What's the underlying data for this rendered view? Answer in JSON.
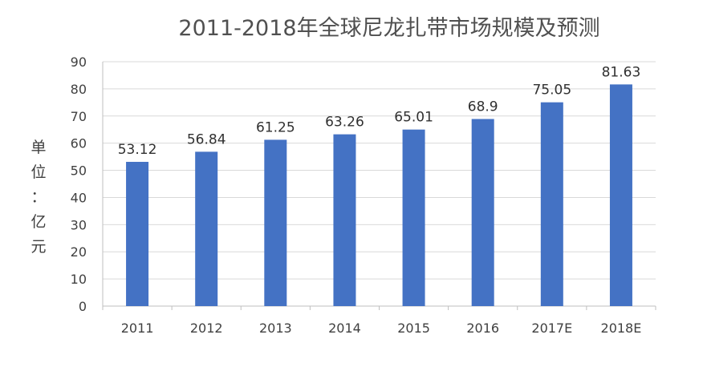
{
  "chart_data": {
    "type": "bar",
    "title": "2011-2018年全球尼龙扎带市场规模及预测",
    "ylabel": "单位：亿元",
    "xlabel": "",
    "categories": [
      "2011",
      "2012",
      "2013",
      "2014",
      "2015",
      "2016",
      "2017E",
      "2018E"
    ],
    "values": [
      53.12,
      56.84,
      61.25,
      63.26,
      65.01,
      68.9,
      75.05,
      81.63
    ],
    "data_labels": [
      "53.12",
      "56.84",
      "61.25",
      "63.26",
      "65.01",
      "68.9",
      "75.05",
      "81.63"
    ],
    "ylim": [
      0,
      90
    ],
    "yticks": [
      0,
      10,
      20,
      30,
      40,
      50,
      60,
      70,
      80,
      90
    ],
    "grid": true,
    "legend": "none",
    "bar_color": "#4472c4"
  }
}
